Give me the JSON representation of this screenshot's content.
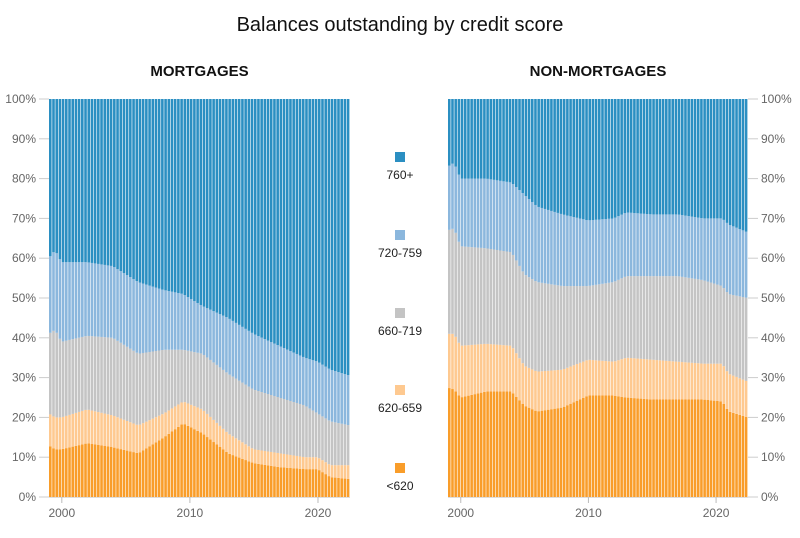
{
  "title": "Balances outstanding by credit score",
  "legend": [
    {
      "label": "760+",
      "color": "#2b8fc2"
    },
    {
      "label": "720-759",
      "color": "#8bb7dd"
    },
    {
      "label": "660-719",
      "color": "#c4c4c4"
    },
    {
      "label": "620-659",
      "color": "#fec990"
    },
    {
      "label": "<620",
      "color": "#f99d2a"
    }
  ],
  "chart_data": [
    {
      "type": "bar",
      "stacked": true,
      "normalized": true,
      "title": "MORTGAGES",
      "xlabel": "",
      "ylabel": "",
      "x_start": 1999.0,
      "x_step": 0.25,
      "n_points": 94,
      "xlim": [
        1999.0,
        2022.5
      ],
      "ylim": [
        0,
        100
      ],
      "y_axis_side": "left",
      "x_ticks": [
        "2000",
        "2010",
        "2020"
      ],
      "y_ticks": [
        "0%",
        "10%",
        "20%",
        "30%",
        "40%",
        "50%",
        "60%",
        "70%",
        "80%",
        "90%",
        "100%"
      ],
      "series_order_bottom_to_top": [
        "<620",
        "620-659",
        "660-719",
        "720-759",
        "760+"
      ],
      "cumulative_keypoints": {
        "x": [
          1999.0,
          1999.5,
          2000.0,
          2002.0,
          2004.0,
          2006.0,
          2008.0,
          2009.5,
          2011.0,
          2013.0,
          2015.0,
          2017.0,
          2019.0,
          2020.0,
          2021.0,
          2022.5
        ],
        "<620": [
          13,
          12,
          12,
          13.5,
          12.5,
          11,
          15,
          18.5,
          16,
          11,
          8.5,
          7.5,
          7,
          7,
          5,
          4.5
        ],
        "620-659": [
          21,
          20,
          20,
          22,
          20.5,
          18,
          21,
          24,
          22,
          16,
          12,
          11,
          10,
          10,
          8,
          8
        ],
        "660-719": [
          41,
          42,
          39,
          40.5,
          40,
          36,
          37,
          37,
          36,
          31,
          27,
          25,
          23,
          21,
          19,
          18
        ],
        "720-759": [
          60,
          62,
          59,
          59,
          58,
          54,
          52,
          51,
          48,
          45,
          41,
          38,
          35,
          34,
          32,
          30.5
        ],
        "760+": [
          100,
          100,
          100,
          100,
          100,
          100,
          100,
          100,
          100,
          100,
          100,
          100,
          100,
          100,
          100,
          100
        ]
      }
    },
    {
      "type": "bar",
      "stacked": true,
      "normalized": true,
      "title": "NON-MORTGAGES",
      "xlabel": "",
      "ylabel": "",
      "x_start": 1999.0,
      "x_step": 0.25,
      "n_points": 94,
      "xlim": [
        1999.0,
        2022.5
      ],
      "ylim": [
        0,
        100
      ],
      "y_axis_side": "right",
      "x_ticks": [
        "2000",
        "2010",
        "2020"
      ],
      "y_ticks": [
        "0%",
        "10%",
        "20%",
        "30%",
        "40%",
        "50%",
        "60%",
        "70%",
        "80%",
        "90%",
        "100%"
      ],
      "series_order_bottom_to_top": [
        "<620",
        "620-659",
        "660-719",
        "720-759",
        "760+"
      ],
      "cumulative_keypoints": {
        "x": [
          1999.0,
          1999.5,
          2000.0,
          2002.0,
          2004.0,
          2005.0,
          2006.0,
          2008.0,
          2010.0,
          2012.0,
          2013.0,
          2015.0,
          2017.0,
          2019.0,
          2020.5,
          2021.0,
          2022.5
        ],
        "<620": [
          27.5,
          27,
          25,
          26.5,
          26.5,
          23,
          21.5,
          22.5,
          25.5,
          25.5,
          25,
          24.5,
          24.5,
          24.5,
          24,
          21.5,
          20
        ],
        "620-659": [
          41,
          41,
          38,
          38.5,
          38,
          33,
          31.5,
          32,
          34.5,
          34,
          35,
          34.5,
          34,
          33.5,
          33.5,
          31,
          29
        ],
        "660-719": [
          67,
          67.5,
          63,
          62.5,
          61.5,
          56,
          54,
          53,
          53,
          54,
          55.5,
          55.5,
          55.5,
          54.5,
          53,
          51,
          50
        ],
        "720-759": [
          83,
          84,
          80,
          80,
          79,
          76,
          73,
          71,
          69.5,
          70,
          71.5,
          71,
          71,
          70,
          70,
          68.5,
          66.5
        ],
        "760+": [
          100,
          100,
          100,
          100,
          100,
          100,
          100,
          100,
          100,
          100,
          100,
          100,
          100,
          100,
          100,
          100,
          100
        ]
      }
    }
  ]
}
